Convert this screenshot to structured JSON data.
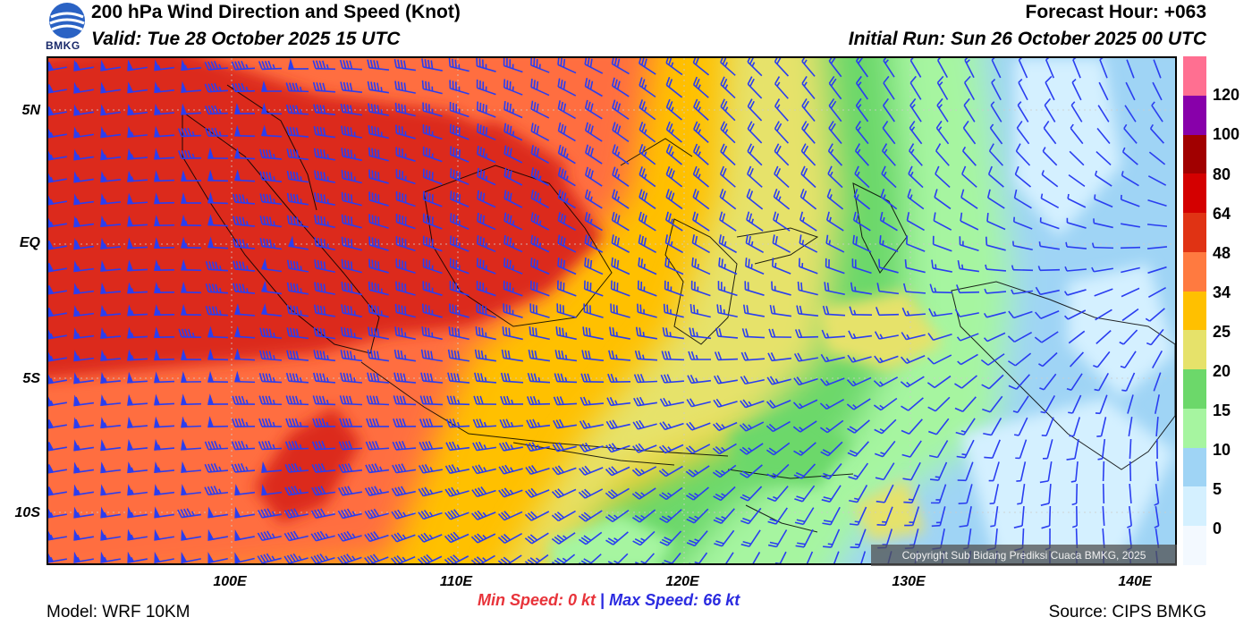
{
  "header": {
    "title": "200 hPa Wind Direction and Speed (Knot)",
    "valid": "Valid: Tue 28 October 2025 15 UTC",
    "forecast_hour": "Forecast Hour: +063",
    "initial_run": "Initial Run: Sun 26 October 2025 00 UTC",
    "logo_text": "BMKG"
  },
  "map": {
    "lat_labels": [
      "5N",
      "EQ",
      "5S",
      "10S"
    ],
    "lon_labels": [
      "100E",
      "110E",
      "120E",
      "130E",
      "140E"
    ],
    "copyright": "Copyright Sub Bidang Prediksi Cuaca BMKG, 2025",
    "colors": {
      "very_strong": "#dc2a1a",
      "strong": "#ff6e40",
      "moderate": "#ffc000",
      "light": "#e6e26a",
      "weak": "#6cd86a",
      "calm_green": "#a6f5a0",
      "calm_blue": "#9fd4f5",
      "very_calm": "#d4f0ff",
      "barb": "#2a3ef0"
    }
  },
  "colorbar": {
    "labels": [
      "120",
      "100",
      "80",
      "64",
      "48",
      "34",
      "25",
      "20",
      "15",
      "10",
      "5",
      "0"
    ],
    "colors": [
      "#ff6f91",
      "#8800aa",
      "#a10000",
      "#d40000",
      "#e03314",
      "#ff7a40",
      "#ffc000",
      "#e6e26a",
      "#6cd86a",
      "#a6f5a0",
      "#9fd4f5",
      "#d4f0ff",
      "#f3f9ff"
    ]
  },
  "footer": {
    "model": "Model: WRF 10KM",
    "source": "Source: CIPS BMKG",
    "min_label": "Min Speed:",
    "min_value": "0 kt",
    "separator": "|",
    "max_label": "Max Speed:",
    "max_value": "66 kt"
  }
}
